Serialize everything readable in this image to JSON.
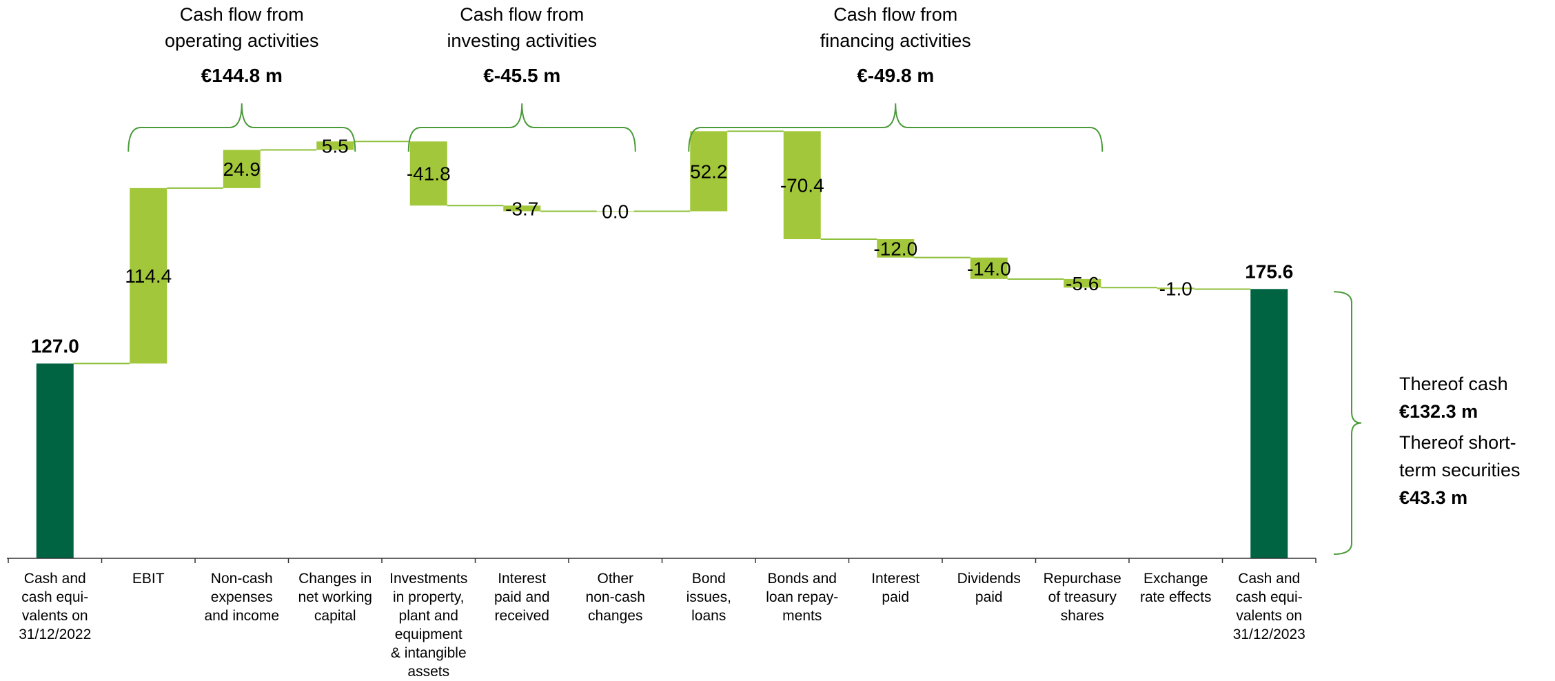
{
  "chart_data": {
    "type": "waterfall",
    "categories": [
      "Cash and cash equi-valents on 31/12/2022",
      "EBIT",
      "Non-cash expenses and income",
      "Changes in net working capital",
      "Investments in property, plant and equipment & intangible assets",
      "Interest paid and received",
      "Other non-cash changes",
      "Bond issues, loans",
      "Bonds and loan repay-ments",
      "Interest paid",
      "Dividends paid",
      "Repurchase of treasury shares",
      "Exchange rate effects",
      "Cash and cash equi-valents on 31/12/2023"
    ],
    "category_lines": [
      [
        "Cash and",
        "cash equi-",
        "valents on",
        "31/12/2022"
      ],
      [
        "EBIT"
      ],
      [
        "Non-cash",
        "expenses",
        "and income"
      ],
      [
        "Changes in",
        "net working",
        "capital"
      ],
      [
        "Investments",
        "in property,",
        "plant and",
        "equipment",
        "& intangible",
        "assets"
      ],
      [
        "Interest",
        "paid and",
        "received"
      ],
      [
        "Other",
        "non-cash",
        "changes"
      ],
      [
        "Bond",
        "issues,",
        "loans"
      ],
      [
        "Bonds and",
        "loan repay-",
        "ments"
      ],
      [
        "Interest",
        "paid"
      ],
      [
        "Dividends",
        "paid"
      ],
      [
        "Repurchase",
        "of treasury",
        "shares"
      ],
      [
        "Exchange",
        "rate effects"
      ],
      [
        "Cash and",
        "cash equi-",
        "valents on",
        "31/12/2023"
      ]
    ],
    "kinds": [
      "total",
      "delta",
      "delta",
      "delta",
      "delta",
      "delta",
      "delta",
      "delta",
      "delta",
      "delta",
      "delta",
      "delta",
      "delta",
      "total"
    ],
    "values": [
      127.0,
      114.4,
      24.9,
      5.5,
      -41.8,
      -3.7,
      0.0,
      52.2,
      -70.4,
      -12.0,
      -14.0,
      -5.6,
      -1.0,
      175.6
    ],
    "value_labels": [
      "127.0",
      "114.4",
      "24.9",
      "5.5",
      "-41.8",
      "-3.7",
      "0.0",
      "52.2",
      "-70.4",
      "-12.0",
      "-14.0",
      "-5.6",
      "-1.0",
      "175.6"
    ],
    "groups": [
      {
        "title_lines": [
          "Cash flow from",
          "operating activities"
        ],
        "total": "€144.8 m",
        "from": 1,
        "to": 3
      },
      {
        "title_lines": [
          "Cash flow from",
          "investing activities"
        ],
        "total": "€-45.5 m",
        "from": 4,
        "to": 6
      },
      {
        "title_lines": [
          "Cash flow from",
          "financing activities"
        ],
        "total": "€-49.8 m",
        "from": 7,
        "to": 11
      }
    ],
    "closing_split": [
      {
        "label_lines": [
          "Thereof cash"
        ],
        "value": "€132.3 m"
      },
      {
        "label_lines": [
          "Thereof short-",
          "term securities"
        ],
        "value": "€43.3 m"
      }
    ],
    "colors": {
      "total": "#006443",
      "delta": "#a2c73b",
      "bracket": "#4a9a3a",
      "connector": "#8cbf3a"
    },
    "grid": false,
    "legend": "none"
  }
}
